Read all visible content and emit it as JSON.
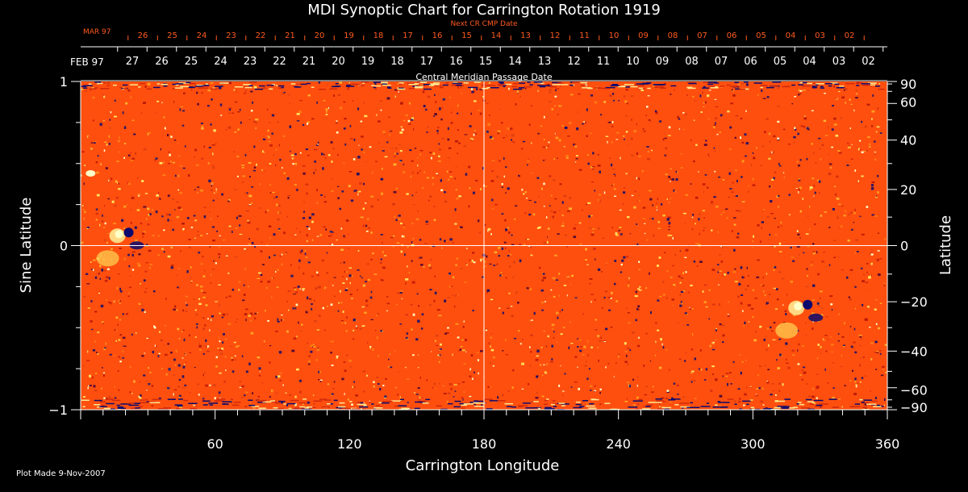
{
  "chart_data": {
    "type": "heatmap",
    "title": "MDI Synoptic Chart for Carrington Rotation 1919",
    "xlabel": "Carrington Longitude",
    "ylabel_left": "Sine Latitude",
    "ylabel_right": "Latitude",
    "xlim": [
      0,
      360
    ],
    "ylim": [
      -1,
      1
    ],
    "x_ticks": [
      60,
      120,
      180,
      240,
      300,
      360
    ],
    "y_ticks_left": [
      {
        "value": 1,
        "label": "1"
      },
      {
        "value": 0,
        "label": "0"
      },
      {
        "value": -1,
        "label": "−1"
      }
    ],
    "y_ticks_right": [
      90,
      60,
      40,
      20,
      0,
      -20,
      -40,
      -60,
      -90
    ],
    "top_axis": {
      "label": "Central Meridian Passage Date",
      "month_label": "FEB 97",
      "dates": [
        "27",
        "26",
        "25",
        "24",
        "23",
        "22",
        "21",
        "20",
        "19",
        "18",
        "17",
        "16",
        "15",
        "14",
        "13",
        "12",
        "11",
        "10",
        "09",
        "08",
        "07",
        "06",
        "05",
        "04",
        "03",
        "02"
      ]
    },
    "next_cr_axis": {
      "label": "Next CR CMP Date",
      "month_label": "MAR 97",
      "dates": [
        "26",
        "25",
        "24",
        "23",
        "22",
        "21",
        "20",
        "19",
        "18",
        "17",
        "16",
        "15",
        "14",
        "13",
        "12",
        "11",
        "10",
        "09",
        "08",
        "07",
        "06",
        "05",
        "04",
        "03",
        "02"
      ]
    },
    "features": [
      {
        "longitude": 323,
        "sine_latitude": -0.37,
        "polarity": "bipolar",
        "note": "active region"
      },
      {
        "longitude": 20,
        "sine_latitude": 0.07,
        "polarity": "bipolar",
        "note": "active region"
      },
      {
        "longitude": 3,
        "sine_latitude": 0.44,
        "polarity": "positive"
      }
    ],
    "grid": {
      "equator": true,
      "central_meridian": 180
    },
    "colors": {
      "background": "#000000",
      "map_base": "#ff4f0e",
      "positive": "#ffffc8",
      "negative": "#0a0a6e",
      "axis": "#ffffff",
      "next_cr_text": "#ff5a1e"
    }
  },
  "footer": {
    "plot_made": "Plot Made  9-Nov-2007"
  }
}
